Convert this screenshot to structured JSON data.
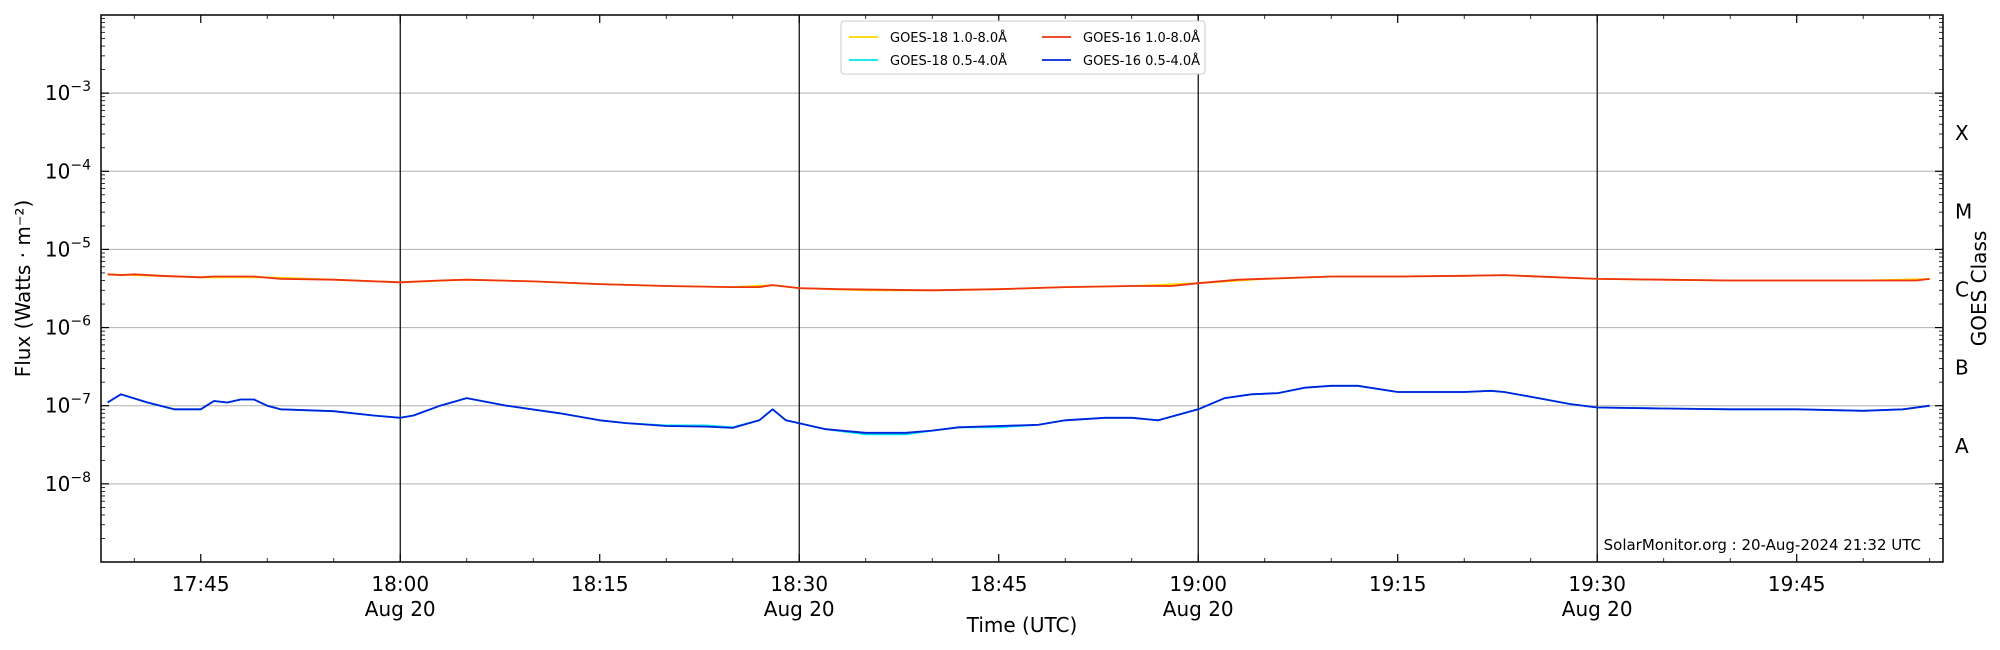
{
  "chart_data": {
    "type": "line",
    "xlabel": "Time (UTC)",
    "ylabel": "Flux (Watts · m⁻²)",
    "ylabel_right": "GOES Class",
    "y_scale": "log",
    "ylim": [
      1e-09,
      0.01
    ],
    "xlim": [
      "2024-08-20T17:37:30",
      "2024-08-20T19:56:00"
    ],
    "grid": true,
    "legend_position": "top-center",
    "credit": "SolarMonitor.org : 20-Aug-2024 21:32 UTC",
    "y_ticks": [
      {
        "value": 1e-08,
        "label_base": "10",
        "label_exp": "−8"
      },
      {
        "value": 1e-07,
        "label_base": "10",
        "label_exp": "−7"
      },
      {
        "value": 1e-06,
        "label_base": "10",
        "label_exp": "−6"
      },
      {
        "value": 1e-05,
        "label_base": "10",
        "label_exp": "−5"
      },
      {
        "value": 0.0001,
        "label_base": "10",
        "label_exp": "−4"
      },
      {
        "value": 0.001,
        "label_base": "10",
        "label_exp": "−3"
      }
    ],
    "x_ticks": [
      {
        "time": "2024-08-20T17:45",
        "label": "17:45",
        "sublabel": ""
      },
      {
        "time": "2024-08-20T18:00",
        "label": "18:00",
        "sublabel": "Aug 20"
      },
      {
        "time": "2024-08-20T18:15",
        "label": "18:15",
        "sublabel": ""
      },
      {
        "time": "2024-08-20T18:30",
        "label": "18:30",
        "sublabel": "Aug 20"
      },
      {
        "time": "2024-08-20T18:45",
        "label": "18:45",
        "sublabel": ""
      },
      {
        "time": "2024-08-20T19:00",
        "label": "19:00",
        "sublabel": "Aug 20"
      },
      {
        "time": "2024-08-20T19:15",
        "label": "19:15",
        "sublabel": ""
      },
      {
        "time": "2024-08-20T19:30",
        "label": "19:30",
        "sublabel": "Aug 20"
      },
      {
        "time": "2024-08-20T19:45",
        "label": "19:45",
        "sublabel": ""
      }
    ],
    "vertical_lines": [
      "2024-08-20T18:00",
      "2024-08-20T18:30",
      "2024-08-20T19:00",
      "2024-08-20T19:30"
    ],
    "goes_classes": [
      {
        "label": "A",
        "value": 3.16e-08
      },
      {
        "label": "B",
        "value": 3.16e-07
      },
      {
        "label": "C",
        "value": 3.16e-06
      },
      {
        "label": "M",
        "value": 3.16e-05
      },
      {
        "label": "X",
        "value": 0.000316
      }
    ],
    "series": [
      {
        "name": "GOES-18 1.0-8.0Å",
        "color": "#ffd700",
        "points": [
          [
            "17:38",
            4.8e-06
          ],
          [
            "17:45",
            4.4e-06
          ],
          [
            "17:50",
            4.4e-06
          ],
          [
            "17:55",
            4.1e-06
          ],
          [
            "18:00",
            3.8e-06
          ],
          [
            "18:05",
            4.1e-06
          ],
          [
            "18:10",
            3.9e-06
          ],
          [
            "18:15",
            3.6e-06
          ],
          [
            "18:20",
            3.4e-06
          ],
          [
            "18:25",
            3.3e-06
          ],
          [
            "18:28",
            3.5e-06
          ],
          [
            "18:30",
            3.2e-06
          ],
          [
            "18:35",
            3e-06
          ],
          [
            "18:40",
            3e-06
          ],
          [
            "18:45",
            3.1e-06
          ],
          [
            "18:50",
            3.3e-06
          ],
          [
            "18:55",
            3.4e-06
          ],
          [
            "19:00",
            3.7e-06
          ],
          [
            "19:05",
            4.2e-06
          ],
          [
            "19:10",
            4.5e-06
          ],
          [
            "19:15",
            4.5e-06
          ],
          [
            "19:20",
            4.6e-06
          ],
          [
            "19:23",
            4.7e-06
          ],
          [
            "19:30",
            4.2e-06
          ],
          [
            "19:35",
            4.1e-06
          ],
          [
            "19:40",
            4e-06
          ],
          [
            "19:45",
            4e-06
          ],
          [
            "19:50",
            4e-06
          ],
          [
            "19:55",
            4.2e-06
          ]
        ]
      },
      {
        "name": "GOES-16 1.0-8.0Å",
        "color": "#ee3311",
        "points": [
          [
            "17:38",
            4.8e-06
          ],
          [
            "17:39",
            4.7e-06
          ],
          [
            "17:40",
            4.8e-06
          ],
          [
            "17:42",
            4.6e-06
          ],
          [
            "17:45",
            4.4e-06
          ],
          [
            "17:46",
            4.5e-06
          ],
          [
            "17:48",
            4.5e-06
          ],
          [
            "17:49",
            4.5e-06
          ],
          [
            "17:51",
            4.2e-06
          ],
          [
            "17:55",
            4.1e-06
          ],
          [
            "18:00",
            3.8e-06
          ],
          [
            "18:03",
            4e-06
          ],
          [
            "18:05",
            4.1e-06
          ],
          [
            "18:10",
            3.9e-06
          ],
          [
            "18:15",
            3.6e-06
          ],
          [
            "18:20",
            3.4e-06
          ],
          [
            "18:25",
            3.3e-06
          ],
          [
            "18:27",
            3.3e-06
          ],
          [
            "18:28",
            3.5e-06
          ],
          [
            "18:30",
            3.2e-06
          ],
          [
            "18:33",
            3.1e-06
          ],
          [
            "18:40",
            3e-06
          ],
          [
            "18:45",
            3.1e-06
          ],
          [
            "18:50",
            3.3e-06
          ],
          [
            "18:55",
            3.4e-06
          ],
          [
            "18:58",
            3.4e-06
          ],
          [
            "19:00",
            3.7e-06
          ],
          [
            "19:03",
            4.1e-06
          ],
          [
            "19:10",
            4.5e-06
          ],
          [
            "19:15",
            4.5e-06
          ],
          [
            "19:20",
            4.6e-06
          ],
          [
            "19:23",
            4.7e-06
          ],
          [
            "19:27",
            4.4e-06
          ],
          [
            "19:30",
            4.2e-06
          ],
          [
            "19:35",
            4.1e-06
          ],
          [
            "19:40",
            4e-06
          ],
          [
            "19:45",
            4e-06
          ],
          [
            "19:50",
            4e-06
          ],
          [
            "19:54",
            4e-06
          ],
          [
            "19:55",
            4.2e-06
          ]
        ]
      },
      {
        "name": "GOES-18 0.5-4.0Å",
        "color": "#00e5ee",
        "points": [
          [
            "17:38",
            1.1e-07
          ],
          [
            "17:39",
            1.4e-07
          ],
          [
            "17:41",
            1.1e-07
          ],
          [
            "17:43",
            9e-08
          ],
          [
            "17:45",
            9e-08
          ],
          [
            "17:46",
            1.15e-07
          ],
          [
            "17:47",
            1.1e-07
          ],
          [
            "17:48",
            1.2e-07
          ],
          [
            "17:49",
            1.2e-07
          ],
          [
            "17:50",
            1e-07
          ],
          [
            "17:51",
            9e-08
          ],
          [
            "17:55",
            8.5e-08
          ],
          [
            "17:58",
            7.5e-08
          ],
          [
            "18:00",
            7e-08
          ],
          [
            "18:01",
            7.5e-08
          ],
          [
            "18:03",
            1e-07
          ],
          [
            "18:05",
            1.25e-07
          ],
          [
            "18:08",
            1e-07
          ],
          [
            "18:12",
            8e-08
          ],
          [
            "18:15",
            6.5e-08
          ],
          [
            "18:17",
            6e-08
          ],
          [
            "18:20",
            5.6e-08
          ],
          [
            "18:23",
            5.6e-08
          ],
          [
            "18:25",
            5.3e-08
          ],
          [
            "18:27",
            6.5e-08
          ],
          [
            "18:28",
            9e-08
          ],
          [
            "18:29",
            6.5e-08
          ],
          [
            "18:32",
            5e-08
          ],
          [
            "18:35",
            4.3e-08
          ],
          [
            "18:38",
            4.3e-08
          ],
          [
            "18:40",
            4.8e-08
          ],
          [
            "18:42",
            5.3e-08
          ],
          [
            "18:45",
            5.3e-08
          ],
          [
            "18:48",
            5.7e-08
          ],
          [
            "18:50",
            6.5e-08
          ],
          [
            "18:53",
            7e-08
          ],
          [
            "18:55",
            7e-08
          ],
          [
            "18:57",
            6.5e-08
          ],
          [
            "19:00",
            9e-08
          ],
          [
            "19:02",
            1.25e-07
          ],
          [
            "19:04",
            1.4e-07
          ],
          [
            "19:06",
            1.45e-07
          ],
          [
            "19:08",
            1.7e-07
          ],
          [
            "19:10",
            1.8e-07
          ],
          [
            "19:12",
            1.8e-07
          ],
          [
            "19:15",
            1.5e-07
          ],
          [
            "19:17",
            1.5e-07
          ],
          [
            "19:20",
            1.5e-07
          ],
          [
            "19:22",
            1.55e-07
          ],
          [
            "19:23",
            1.5e-07
          ],
          [
            "19:25",
            1.3e-07
          ],
          [
            "19:28",
            1.05e-07
          ],
          [
            "19:30",
            9.5e-08
          ],
          [
            "19:35",
            9.2e-08
          ],
          [
            "19:40",
            9e-08
          ],
          [
            "19:45",
            9e-08
          ],
          [
            "19:50",
            8.6e-08
          ],
          [
            "19:53",
            9e-08
          ],
          [
            "19:55",
            1e-07
          ]
        ]
      },
      {
        "name": "GOES-16 0.5-4.0Å",
        "color": "#0022dd",
        "points": [
          [
            "17:38",
            1.1e-07
          ],
          [
            "17:39",
            1.4e-07
          ],
          [
            "17:41",
            1.1e-07
          ],
          [
            "17:43",
            9e-08
          ],
          [
            "17:45",
            9e-08
          ],
          [
            "17:46",
            1.15e-07
          ],
          [
            "17:47",
            1.1e-07
          ],
          [
            "17:48",
            1.2e-07
          ],
          [
            "17:49",
            1.2e-07
          ],
          [
            "17:50",
            1e-07
          ],
          [
            "17:51",
            9e-08
          ],
          [
            "17:55",
            8.5e-08
          ],
          [
            "17:58",
            7.5e-08
          ],
          [
            "18:00",
            7e-08
          ],
          [
            "18:01",
            7.5e-08
          ],
          [
            "18:03",
            1e-07
          ],
          [
            "18:05",
            1.25e-07
          ],
          [
            "18:08",
            1e-07
          ],
          [
            "18:12",
            8e-08
          ],
          [
            "18:15",
            6.5e-08
          ],
          [
            "18:17",
            6e-08
          ],
          [
            "18:20",
            5.5e-08
          ],
          [
            "18:23",
            5.4e-08
          ],
          [
            "18:25",
            5.2e-08
          ],
          [
            "18:27",
            6.5e-08
          ],
          [
            "18:28",
            9e-08
          ],
          [
            "18:29",
            6.5e-08
          ],
          [
            "18:32",
            5e-08
          ],
          [
            "18:35",
            4.5e-08
          ],
          [
            "18:38",
            4.5e-08
          ],
          [
            "18:40",
            4.8e-08
          ],
          [
            "18:42",
            5.3e-08
          ],
          [
            "18:45",
            5.5e-08
          ],
          [
            "18:48",
            5.7e-08
          ],
          [
            "18:50",
            6.5e-08
          ],
          [
            "18:53",
            7e-08
          ],
          [
            "18:55",
            7e-08
          ],
          [
            "18:57",
            6.5e-08
          ],
          [
            "19:00",
            9e-08
          ],
          [
            "19:02",
            1.25e-07
          ],
          [
            "19:04",
            1.4e-07
          ],
          [
            "19:06",
            1.45e-07
          ],
          [
            "19:08",
            1.7e-07
          ],
          [
            "19:10",
            1.8e-07
          ],
          [
            "19:12",
            1.8e-07
          ],
          [
            "19:15",
            1.5e-07
          ],
          [
            "19:17",
            1.5e-07
          ],
          [
            "19:20",
            1.5e-07
          ],
          [
            "19:22",
            1.55e-07
          ],
          [
            "19:23",
            1.5e-07
          ],
          [
            "19:25",
            1.3e-07
          ],
          [
            "19:28",
            1.05e-07
          ],
          [
            "19:30",
            9.5e-08
          ],
          [
            "19:35",
            9.2e-08
          ],
          [
            "19:40",
            9e-08
          ],
          [
            "19:45",
            9e-08
          ],
          [
            "19:50",
            8.6e-08
          ],
          [
            "19:53",
            9e-08
          ],
          [
            "19:55",
            1e-07
          ]
        ]
      }
    ],
    "legend_order": [
      0,
      2,
      1,
      3
    ]
  }
}
